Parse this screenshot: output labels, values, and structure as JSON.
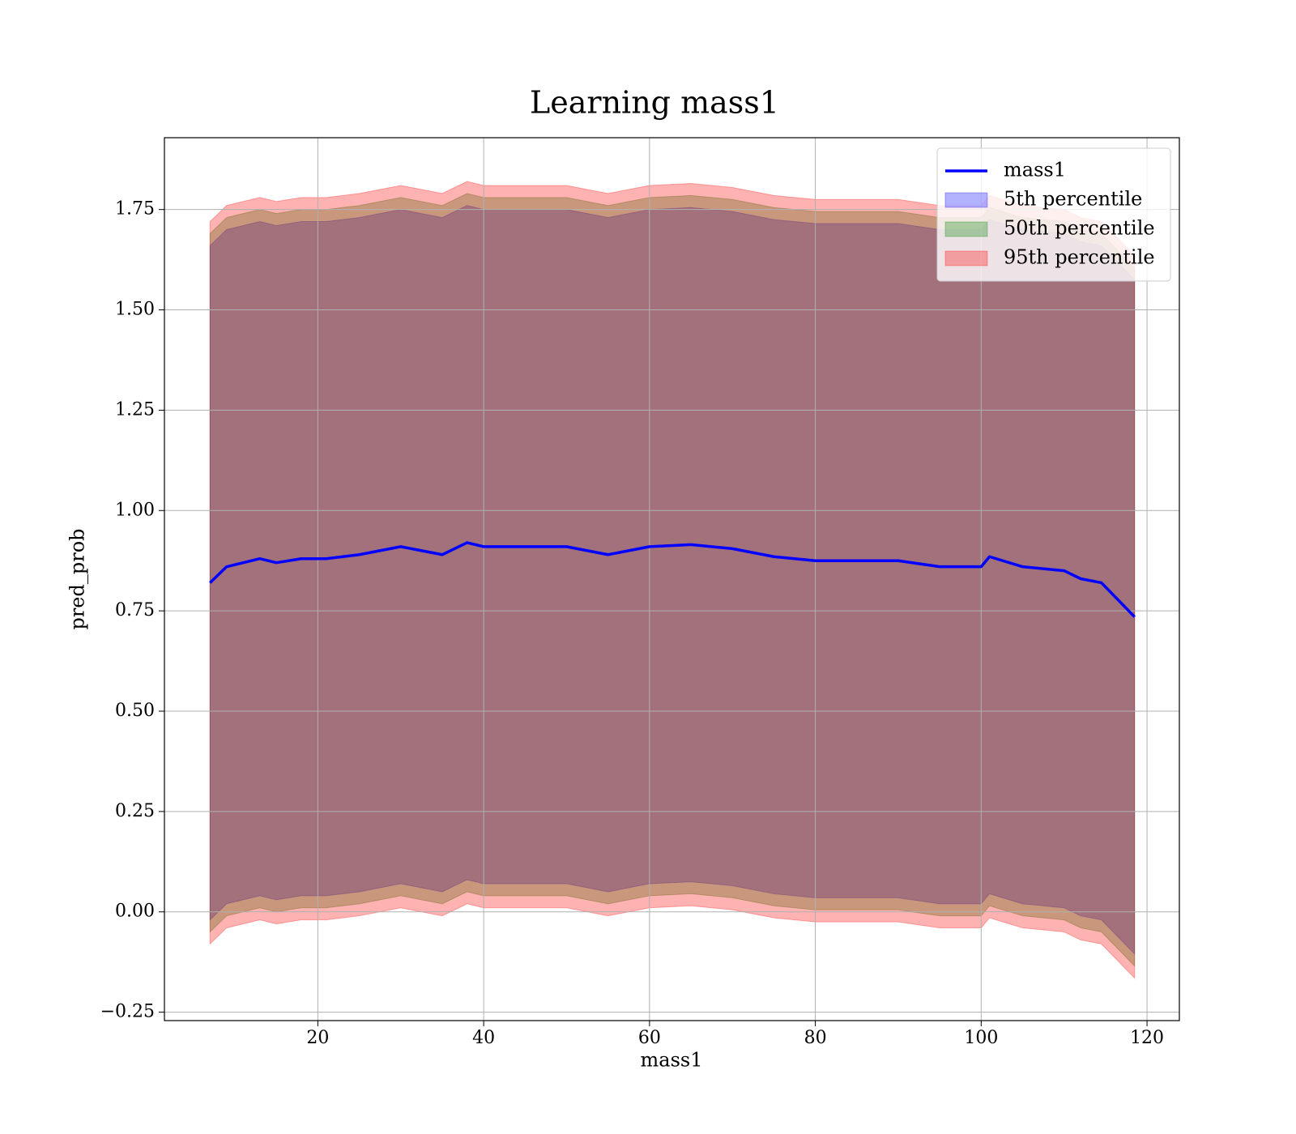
{
  "chart_data": {
    "type": "line",
    "title": "Learning mass1",
    "xlabel": "mass1",
    "ylabel": "pred_prob",
    "x": [
      7,
      9,
      11,
      13,
      15,
      18,
      21,
      25,
      30,
      35,
      38,
      40,
      45,
      50,
      55,
      60,
      65,
      70,
      75,
      80,
      85,
      90,
      95,
      100,
      101,
      105,
      110,
      112,
      114.5,
      118.5
    ],
    "series": [
      {
        "name": "mass1",
        "color": "#0000ff",
        "values": [
          0.82,
          0.86,
          0.87,
          0.88,
          0.87,
          0.88,
          0.88,
          0.89,
          0.91,
          0.89,
          0.92,
          0.91,
          0.91,
          0.91,
          0.89,
          0.91,
          0.915,
          0.905,
          0.885,
          0.875,
          0.875,
          0.875,
          0.86,
          0.86,
          0.885,
          0.86,
          0.85,
          0.83,
          0.82,
          0.735
        ]
      }
    ],
    "bands": [
      {
        "name": "5th percentile",
        "color": "#0000ff",
        "lower": [
          -0.02,
          0.02,
          0.03,
          0.04,
          0.03,
          0.04,
          0.04,
          0.05,
          0.07,
          0.05,
          0.08,
          0.07,
          0.07,
          0.07,
          0.05,
          0.07,
          0.075,
          0.065,
          0.045,
          0.035,
          0.035,
          0.035,
          0.02,
          0.02,
          0.045,
          0.02,
          0.01,
          -0.01,
          -0.02,
          -0.105
        ],
        "upper": [
          1.66,
          1.7,
          1.71,
          1.72,
          1.71,
          1.72,
          1.72,
          1.73,
          1.75,
          1.73,
          1.76,
          1.75,
          1.75,
          1.75,
          1.73,
          1.75,
          1.755,
          1.745,
          1.725,
          1.715,
          1.715,
          1.715,
          1.7,
          1.7,
          1.725,
          1.7,
          1.69,
          1.67,
          1.66,
          1.575
        ]
      },
      {
        "name": "50th percentile",
        "color": "#008000",
        "lower": [
          -0.05,
          -0.01,
          0.0,
          0.01,
          0.0,
          0.01,
          0.01,
          0.02,
          0.04,
          0.02,
          0.05,
          0.04,
          0.04,
          0.04,
          0.02,
          0.04,
          0.045,
          0.035,
          0.015,
          0.005,
          0.005,
          0.005,
          -0.01,
          -0.01,
          0.015,
          -0.01,
          -0.02,
          -0.04,
          -0.05,
          -0.135
        ],
        "upper": [
          1.69,
          1.73,
          1.74,
          1.75,
          1.74,
          1.75,
          1.75,
          1.76,
          1.78,
          1.76,
          1.79,
          1.78,
          1.78,
          1.78,
          1.76,
          1.78,
          1.785,
          1.775,
          1.755,
          1.745,
          1.745,
          1.745,
          1.73,
          1.73,
          1.755,
          1.73,
          1.72,
          1.7,
          1.69,
          1.605
        ]
      },
      {
        "name": "95th percentile",
        "color": "#ff0000",
        "lower": [
          -0.08,
          -0.04,
          -0.03,
          -0.02,
          -0.03,
          -0.02,
          -0.02,
          -0.01,
          0.01,
          -0.01,
          0.02,
          0.01,
          0.01,
          0.01,
          -0.01,
          0.01,
          0.015,
          0.005,
          -0.015,
          -0.025,
          -0.025,
          -0.025,
          -0.04,
          -0.04,
          -0.015,
          -0.04,
          -0.05,
          -0.07,
          -0.08,
          -0.165
        ],
        "upper": [
          1.72,
          1.76,
          1.77,
          1.78,
          1.77,
          1.78,
          1.78,
          1.79,
          1.81,
          1.79,
          1.82,
          1.81,
          1.81,
          1.81,
          1.79,
          1.81,
          1.815,
          1.805,
          1.785,
          1.775,
          1.775,
          1.775,
          1.76,
          1.76,
          1.785,
          1.76,
          1.75,
          1.73,
          1.72,
          1.635
        ]
      }
    ],
    "xlim": [
      1.5,
      123.9
    ],
    "ylim": [
      -0.271,
      1.929
    ],
    "xticks": [
      20,
      40,
      60,
      80,
      100,
      120
    ],
    "yticks": [
      {
        "value": -0.25,
        "label": "−0.25"
      },
      {
        "value": 0,
        "label": "0.00"
      },
      0.25,
      {
        "value": 0.5,
        "label": "0.50"
      },
      0.75,
      {
        "value": 1,
        "label": "1.00"
      },
      1.25,
      {
        "value": 1.5,
        "label": "1.50"
      },
      1.75
    ],
    "grid": true,
    "legend": "upper right"
  }
}
